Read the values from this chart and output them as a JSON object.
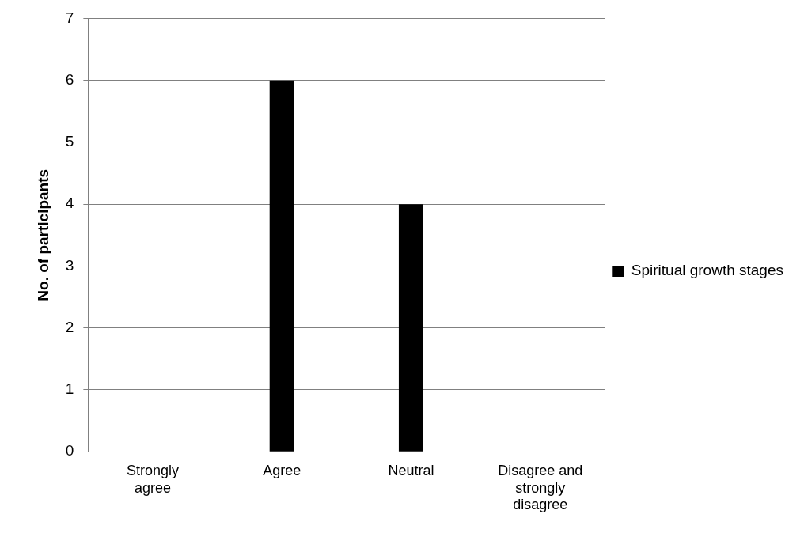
{
  "chart_data": {
    "type": "bar",
    "ylabel": "No. of participants",
    "categories": [
      "Strongly agree",
      "Agree",
      "Neutral",
      "Disagree and strongly disagree"
    ],
    "series": [
      {
        "name": "Spiritual growth stages",
        "color": "#000000",
        "values": [
          0,
          6,
          4,
          0
        ]
      }
    ],
    "ylim": [
      0,
      7
    ],
    "yticks": [
      0,
      1,
      2,
      3,
      4,
      5,
      6,
      7
    ],
    "grid": "y",
    "legend": "right"
  }
}
